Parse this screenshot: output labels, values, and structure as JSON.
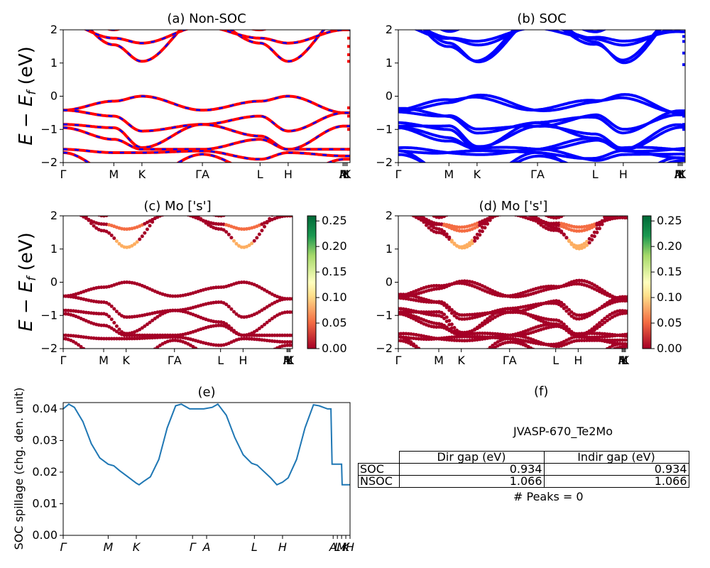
{
  "chart_data": [
    {
      "panel": "a",
      "type": "line",
      "title": "(a) Non-SOC",
      "ylabel": "E − E_f (eV)",
      "ylim": [
        -2,
        2
      ],
      "yticks": [
        -2,
        -1,
        0,
        1,
        2
      ],
      "kpath": [
        "Γ",
        "M",
        "K",
        "Γ",
        "A",
        "L",
        "H",
        "A",
        "M",
        "L",
        "K",
        "H"
      ],
      "xticklabels": [
        "Γ",
        "M",
        "K",
        "ΓA",
        "L",
        "H",
        "A",
        "M",
        "L",
        "K"
      ],
      "series_colors": [
        "#ff0000",
        "#0000ff"
      ],
      "stripe": {
        "energies": [
          1.75,
          1.5,
          1.25,
          1.05
        ],
        "extra_valence": [
          -0.35,
          -0.6,
          -1.0,
          -1.6
        ]
      }
    },
    {
      "panel": "b",
      "type": "line",
      "title": "(b) SOC",
      "ylim": [
        -2,
        2
      ],
      "yticks": [
        -2,
        -1,
        0,
        1,
        2
      ],
      "xticklabels": [
        "Γ",
        "M",
        "K",
        "ΓA",
        "L",
        "H",
        "A",
        "M",
        "L",
        "K"
      ],
      "series_colors": [
        "#0000ff"
      ],
      "stripe": {
        "energies": [
          1.8,
          1.65,
          1.3,
          0.95
        ],
        "extra_valence": [
          -0.55,
          -0.6,
          -0.85,
          -1.0,
          -1.75
        ]
      }
    },
    {
      "panel": "c",
      "type": "scatter",
      "title": "(c)  Mo ['s']",
      "ylabel": "E − E_f (eV)",
      "ylim": [
        -2,
        2
      ],
      "yticks": [
        -2,
        -1,
        0,
        1,
        2
      ],
      "xticklabels": [
        "Γ",
        "M",
        "K",
        "ΓA",
        "L",
        "H",
        "A",
        "M",
        "L",
        "K"
      ],
      "colorbar": {
        "range": [
          0,
          0.26
        ],
        "ticks": [
          "0.00",
          "0.05",
          "0.10",
          "0.15",
          "0.20",
          "0.25"
        ]
      }
    },
    {
      "panel": "d",
      "type": "scatter",
      "title": "(d) Mo ['s']",
      "ylim": [
        -2,
        2
      ],
      "yticks": [
        -2,
        -1,
        0,
        1,
        2
      ],
      "xticklabels": [
        "Γ",
        "M",
        "K",
        "ΓA",
        "L",
        "H",
        "A",
        "M",
        "L",
        "K"
      ],
      "colorbar": {
        "range": [
          0,
          0.26
        ],
        "ticks": [
          "0.00",
          "0.05",
          "0.10",
          "0.15",
          "0.20",
          "0.25"
        ]
      }
    },
    {
      "panel": "e",
      "type": "line",
      "title": "(e)",
      "ylabel": "SOC spillage (chg. den. unit)",
      "ylim": [
        0,
        0.042
      ],
      "yticks": [
        0.0,
        0.01,
        0.02,
        0.03,
        0.04
      ],
      "xticklabels": [
        "Γ",
        "M",
        "K",
        "Γ",
        "A",
        "L",
        "H",
        "A",
        "L",
        "M",
        "K",
        "H"
      ],
      "color": "#1f77b4",
      "series": [
        {
          "x": 0,
          "y": 0.04
        },
        {
          "x": 0.2,
          "y": 0.0415
        },
        {
          "x": 0.4,
          "y": 0.0405
        },
        {
          "x": 0.7,
          "y": 0.036
        },
        {
          "x": 1.0,
          "y": 0.029
        },
        {
          "x": 1.3,
          "y": 0.0245
        },
        {
          "x": 1.6,
          "y": 0.0225
        },
        {
          "x": 1.8,
          "y": 0.022
        },
        {
          "x": 2.0,
          "y": 0.0205
        },
        {
          "x": 2.3,
          "y": 0.0185
        },
        {
          "x": 2.6,
          "y": 0.0165
        },
        {
          "x": 2.7,
          "y": 0.016
        },
        {
          "x": 2.85,
          "y": 0.017
        },
        {
          "x": 3.1,
          "y": 0.0185
        },
        {
          "x": 3.4,
          "y": 0.024
        },
        {
          "x": 3.7,
          "y": 0.034
        },
        {
          "x": 4.0,
          "y": 0.041
        },
        {
          "x": 4.2,
          "y": 0.0415
        },
        {
          "x": 4.5,
          "y": 0.04
        },
        {
          "x": 5.0,
          "y": 0.04
        },
        {
          "x": 5.3,
          "y": 0.0405
        },
        {
          "x": 5.5,
          "y": 0.0415
        },
        {
          "x": 5.8,
          "y": 0.038
        },
        {
          "x": 6.1,
          "y": 0.031
        },
        {
          "x": 6.4,
          "y": 0.0255
        },
        {
          "x": 6.7,
          "y": 0.0228
        },
        {
          "x": 6.9,
          "y": 0.0222
        },
        {
          "x": 7.1,
          "y": 0.0205
        },
        {
          "x": 7.4,
          "y": 0.018
        },
        {
          "x": 7.6,
          "y": 0.016
        },
        {
          "x": 7.8,
          "y": 0.0168
        },
        {
          "x": 8.0,
          "y": 0.0182
        },
        {
          "x": 8.3,
          "y": 0.024
        },
        {
          "x": 8.6,
          "y": 0.034
        },
        {
          "x": 8.9,
          "y": 0.0413
        },
        {
          "x": 9.1,
          "y": 0.041
        },
        {
          "x": 9.4,
          "y": 0.04
        },
        {
          "x": 9.52,
          "y": 0.04
        },
        {
          "x": 9.56,
          "y": 0.0225
        },
        {
          "x": 9.9,
          "y": 0.0225
        },
        {
          "x": 9.92,
          "y": 0.016
        },
        {
          "x": 10.2,
          "y": 0.016
        }
      ]
    }
  ],
  "table_title": "(f)",
  "table": {
    "jid": "JVASP-670_Te2Mo",
    "columns": [
      "Dir gap (eV)",
      "Indir gap (eV)"
    ],
    "rows": [
      {
        "label": "SOC",
        "dir": "0.934",
        "indir": "0.934"
      },
      {
        "label": "NSOC",
        "dir": "1.066",
        "indir": "1.066"
      }
    ],
    "peaks": "# Peaks = 0"
  }
}
